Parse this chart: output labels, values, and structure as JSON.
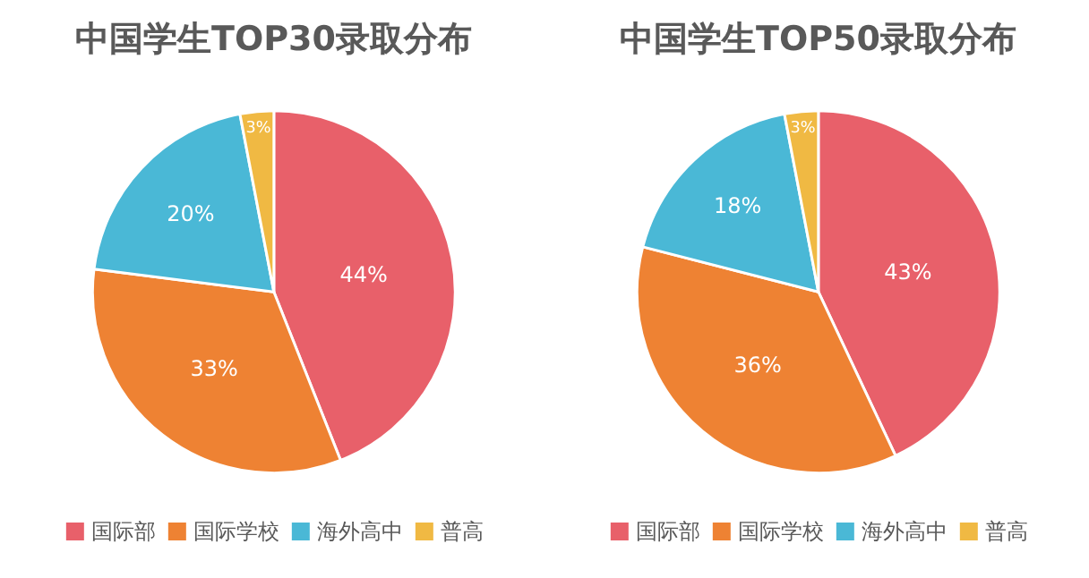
{
  "chart_data": [
    {
      "type": "pie",
      "title": "中国学生TOP30录取分布",
      "categories": [
        "国际部",
        "国际学校",
        "海外高中",
        "普高"
      ],
      "values": [
        44,
        33,
        20,
        3
      ],
      "value_labels": [
        "44%",
        "33%",
        "20%",
        "3%"
      ],
      "colors": [
        "#e8606a",
        "#ee8233",
        "#4ab8d6",
        "#f0b943"
      ],
      "legend": "bottom"
    },
    {
      "type": "pie",
      "title": "中国学生TOP50录取分布",
      "categories": [
        "国际部",
        "国际学校",
        "海外高中",
        "普高"
      ],
      "values": [
        43,
        36,
        18,
        3
      ],
      "value_labels": [
        "43%",
        "36%",
        "18%",
        "3%"
      ],
      "colors": [
        "#e8606a",
        "#ee8233",
        "#4ab8d6",
        "#f0b943"
      ],
      "legend": "bottom"
    }
  ]
}
